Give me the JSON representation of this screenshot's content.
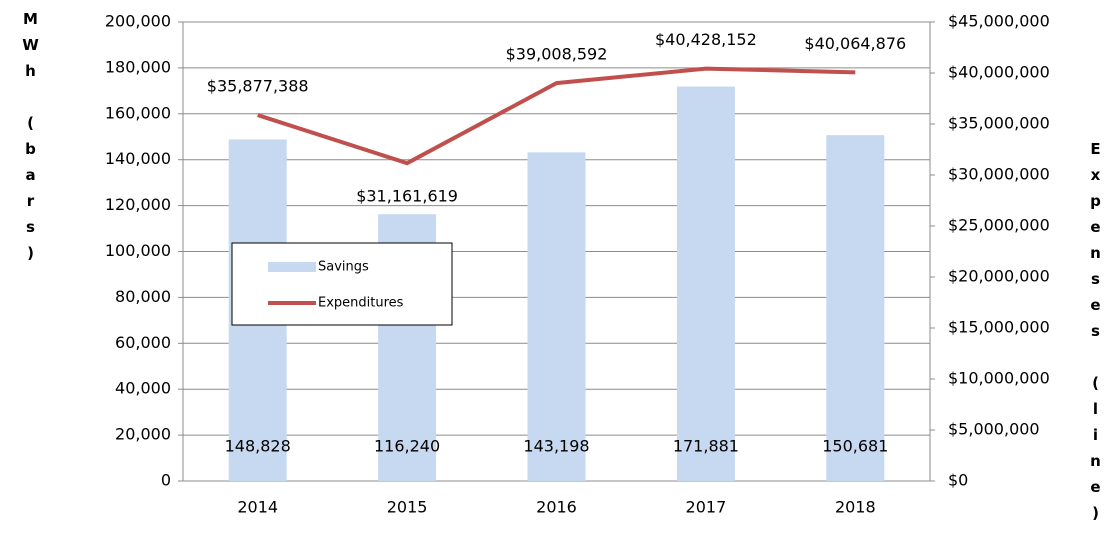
{
  "chart_data": {
    "type": "bar_line",
    "categories": [
      "2014",
      "2015",
      "2016",
      "2017",
      "2018"
    ],
    "y_label": "MWh (bars)",
    "y2_label": "Expenses (line)",
    "series": [
      {
        "name": "Savings",
        "type": "bar",
        "color": "#c6d9f1",
        "values": [
          148828,
          116240,
          143198,
          171881,
          150681
        ],
        "value_labels": [
          "148,828",
          "116,240",
          "143,198",
          "171,881",
          "150,681"
        ]
      },
      {
        "name": "Expenditures",
        "type": "line",
        "axis": "y2",
        "color": "#c0504d",
        "values": [
          35877388,
          31161619,
          39008592,
          40428152,
          40064876
        ],
        "value_labels": [
          "$35,877,388",
          "$31,161,619",
          "$39,008,592",
          "$40,428,152",
          "$40,064,876"
        ]
      }
    ],
    "ylim": [
      0,
      200000
    ],
    "yticks": [
      0,
      {
        "value": 20000,
        "label": "20,000"
      },
      {
        "value": 40000,
        "label": "40,000"
      },
      {
        "value": 60000,
        "label": "60,000"
      },
      {
        "value": 80000,
        "label": "80,000"
      },
      {
        "value": 100000,
        "label": "100,000"
      },
      {
        "value": 120000,
        "label": "120,000"
      },
      {
        "value": 140000,
        "label": "140,000"
      },
      {
        "value": 160000,
        "label": "160,000"
      },
      {
        "value": 180000,
        "label": "180,000"
      },
      {
        "value": 200000,
        "label": "200,000"
      }
    ],
    "y2lim": [
      0,
      45000000
    ],
    "y2ticks": [
      {
        "value": 0,
        "label": "$0"
      },
      {
        "value": 5000000,
        "label": "$5,000,000"
      },
      {
        "value": 10000000,
        "label": "$10,000,000"
      },
      {
        "value": 15000000,
        "label": "$15,000,000"
      },
      {
        "value": 20000000,
        "label": "$20,000,000"
      },
      {
        "value": 25000000,
        "label": "$25,000,000"
      },
      {
        "value": 30000000,
        "label": "$30,000,000"
      },
      {
        "value": 35000000,
        "label": "$35,000,000"
      },
      {
        "value": 40000000,
        "label": "$40,000,000"
      },
      {
        "value": 45000000,
        "label": "$45,000,000"
      }
    ],
    "grid": true
  }
}
